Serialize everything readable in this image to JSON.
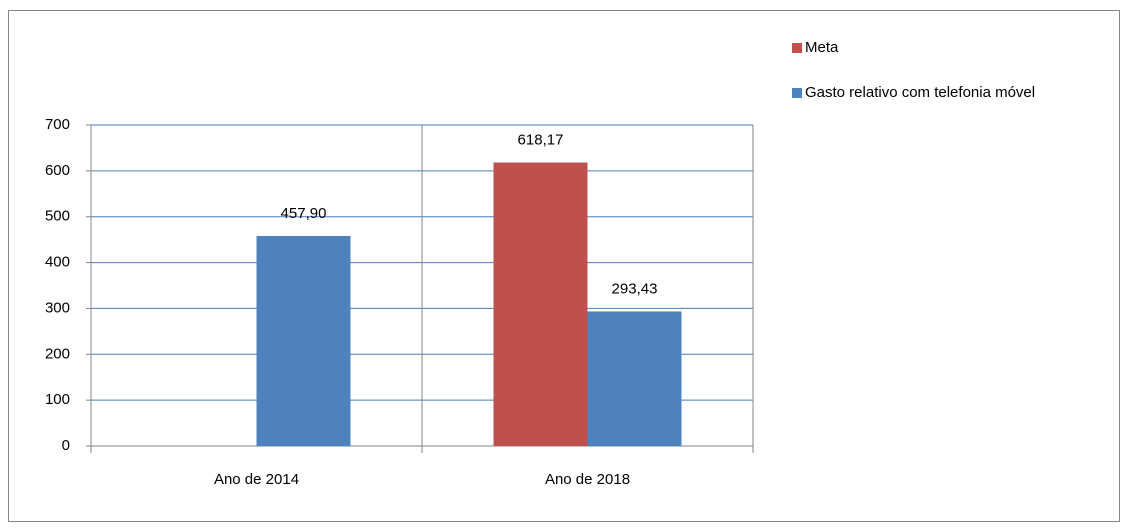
{
  "chart_data": {
    "type": "bar",
    "categories": [
      "Ano de 2014",
      "Ano de 2018"
    ],
    "series": [
      {
        "name": "Meta",
        "color": "#c0504d",
        "values": [
          null,
          618.17
        ],
        "value_labels": [
          null,
          "618,17"
        ]
      },
      {
        "name": "Gasto relativo com telefonia móvel",
        "color": "#4f81bd",
        "values": [
          457.9,
          293.43
        ],
        "value_labels": [
          "457,90",
          "293,43"
        ]
      }
    ],
    "ylim": [
      0,
      700
    ],
    "yticks": [
      0,
      100,
      200,
      300,
      400,
      500,
      600,
      700
    ],
    "grid": true,
    "legend": "top-right"
  }
}
